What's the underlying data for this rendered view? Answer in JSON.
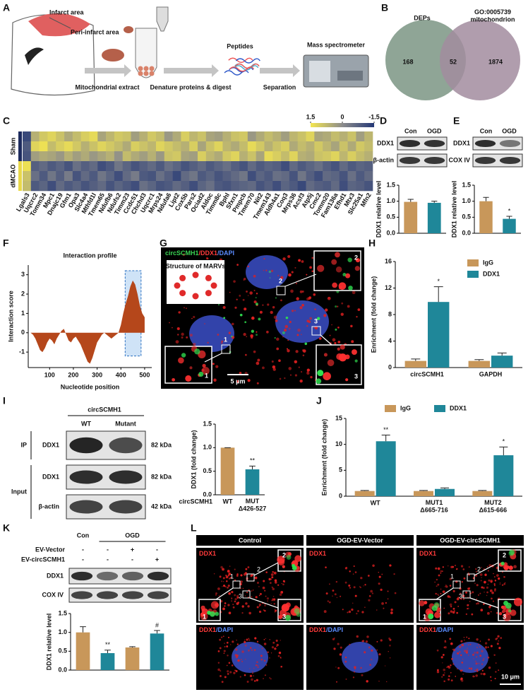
{
  "figure": {
    "panel_labels": [
      "A",
      "B",
      "C",
      "D",
      "E",
      "F",
      "G",
      "H",
      "I",
      "J",
      "K",
      "L"
    ]
  },
  "panel_a": {
    "labels": [
      "Infarct area",
      "Peri-infarct area",
      "Mitochondrial extract",
      "Denature proteins & digest",
      "Peptides",
      "Separation",
      "Mass spectrometer"
    ]
  },
  "panel_b": {
    "sets": [
      "DEPs",
      "GO:0005739\nmitochondrion"
    ],
    "counts": [
      168,
      52,
      1874
    ],
    "colors": [
      "#8fa596",
      "#a28c9f"
    ]
  },
  "panel_d_blot": {
    "rows": [
      "DDX1",
      "β-actin"
    ]
  },
  "panel_e_blot": {
    "rows": [
      "DDX1",
      "COX IV"
    ]
  },
  "panel_g": {
    "channels": [
      {
        "text": "circSCMH1",
        "color": "#39d353"
      },
      {
        "text": "/DDX1",
        "color": "#ff3b3b"
      },
      {
        "text": "/DAPI",
        "color": "#5a8cff"
      }
    ],
    "inset_title": "Structure of MARVs",
    "scale": "5 μm",
    "zoom_labels": [
      "1",
      "2",
      "3"
    ]
  },
  "panel_i_blot": {
    "header": "circSCMH1",
    "columns": [
      "WT",
      "Mutant"
    ],
    "groups": [
      "IP",
      "Input"
    ],
    "rows": [
      "DDX1",
      "DDX1",
      "β-actin"
    ],
    "sizes": [
      "82 kDa",
      "82 kDa",
      "42 kDa"
    ]
  },
  "panel_k_table": {
    "columns": [
      "Con",
      "OGD"
    ],
    "treatments": [
      {
        "name": "EV-Vector",
        "marks": [
          "-",
          "-",
          "+",
          "-"
        ]
      },
      {
        "name": "EV-circSCMH1",
        "marks": [
          "-",
          "-",
          "-",
          "+"
        ]
      }
    ],
    "rows": [
      "DDX1",
      "COX IV"
    ]
  },
  "panel_l": {
    "columns": [
      "Control",
      "OGD-EV-Vector",
      "OGD-EV-circSCMH1"
    ],
    "top_label": [
      {
        "text": "DDX1",
        "color": "#ff3b3b"
      }
    ],
    "bottom_label": [
      {
        "text": "DDX1",
        "color": "#ff3b3b"
      },
      {
        "text": "/DAPI",
        "color": "#5a8cff"
      }
    ],
    "scale": "10 μm",
    "zoom_labels": [
      "1",
      "2",
      "3"
    ]
  },
  "chart_data": [
    {
      "type": "heatmap",
      "x": [
        "Lgals3",
        "Uqcrc2",
        "Tomm34",
        "Mpc1",
        "Dnajc19",
        "Gfm1",
        "Opa3",
        "Slc4a4",
        "Mthfd1l",
        "Tmem65",
        "Ndufb6",
        "Ndufs2",
        "Timm23",
        "Ccdc51",
        "Chchd3",
        "Uqcrc1",
        "Mrps24",
        "Ndufa6",
        "Lipt2",
        "Cox5b",
        "Pars2",
        "Ociad2",
        "Aldoc",
        "Timm8c",
        "Bphl",
        "Sfxn1",
        "Pmpcb",
        "Tmem70",
        "Nit2",
        "Tmem143",
        "Aldh4a1",
        "Coq3",
        "Mrps36",
        "Acsf3",
        "Atp5j",
        "Cmc2",
        "Tomm20",
        "Fam136a",
        "Efhd1",
        "Mtx3",
        "Slc25a1",
        "Mfn2"
      ],
      "groups": [
        {
          "name": "Sham",
          "color": "#1d2b5e",
          "values": [
            [
              -1.2,
              0.6,
              1.0,
              1.2,
              0.9,
              0.5,
              0.8,
              1.1,
              1.3,
              0.4,
              0.7,
              1.0,
              0.9,
              0.3,
              0.6,
              1.0,
              0.8,
              0.2,
              0.5,
              1.1,
              0.7,
              0.9,
              0.4,
              0.3,
              0.6,
              0.9,
              1.0,
              0.2,
              0.5,
              0.8,
              0.6,
              0.3,
              0.7,
              0.9,
              1.2,
              0.4,
              0.5,
              0.8,
              0.6,
              0.9,
              0.3,
              0.7
            ],
            [
              -0.9,
              1.2,
              1.4,
              0.8,
              1.1,
              1.3,
              1.0,
              0.6,
              0.9,
              1.2,
              1.0,
              0.8,
              0.5,
              1.1,
              0.9,
              0.7,
              1.2,
              1.0,
              0.8,
              0.6,
              1.1,
              0.4,
              0.9,
              1.2,
              0.7,
              0.5,
              0.8,
              1.3,
              1.0,
              0.6,
              0.9,
              1.1,
              0.5,
              0.8,
              0.6,
              1.0,
              0.7,
              0.4,
              0.9,
              0.5,
              1.0,
              0.8
            ],
            [
              -1.0,
              0.3,
              0.5,
              0.4,
              0.2,
              0.6,
              0.3,
              0.5,
              0.2,
              0.4,
              0.6,
              0.1,
              0.8,
              0.5,
              0.3,
              0.6,
              0.2,
              0.9,
              1.0,
              0.4,
              0.3,
              1.1,
              0.7,
              0.5,
              1.0,
              1.2,
              0.6,
              0.9,
              0.4,
              1.3,
              1.1,
              0.8,
              1.2,
              0.6,
              0.5,
              0.9,
              1.0,
              1.2,
              0.7,
              1.1,
              0.8,
              0.6
            ]
          ]
        },
        {
          "name": "dMCAO",
          "color": "#e8d84a",
          "values": [
            [
              1.4,
              -0.8,
              -0.6,
              -0.9,
              -0.7,
              -1.0,
              -0.5,
              -0.8,
              -0.6,
              -1.1,
              -0.9,
              -0.4,
              -0.7,
              -1.0,
              -0.8,
              -0.6,
              -0.9,
              -0.5,
              -0.7,
              -1.0,
              -0.8,
              -0.6,
              -0.9,
              -0.7,
              -0.5,
              -0.8,
              -1.0,
              -0.6,
              -0.9,
              -0.7,
              -0.8,
              -1.1,
              -0.6,
              -0.9,
              -0.7,
              -0.5,
              -0.8,
              -1.0,
              -0.6,
              -0.9,
              -0.7,
              -0.8
            ],
            [
              0.9,
              -0.5,
              -0.9,
              -0.4,
              -0.8,
              -0.3,
              -1.0,
              -0.6,
              -0.9,
              -0.4,
              -0.7,
              -1.1,
              -0.6,
              -0.3,
              -0.9,
              -1.0,
              -0.5,
              -0.8,
              -1.2,
              -0.6,
              -0.4,
              -0.9,
              -0.7,
              -1.0,
              -0.8,
              -0.6,
              -0.4,
              -1.1,
              -0.7,
              -0.9,
              -0.5,
              -0.6,
              -1.0,
              -0.4,
              -0.8,
              -1.1,
              -0.6,
              -0.7,
              -1.0,
              -0.5,
              -0.9,
              -0.6
            ],
            [
              0.8,
              -0.9,
              -0.7,
              -1.1,
              -0.6,
              -0.9,
              -0.7,
              -1.0,
              -0.8,
              -0.6,
              -1.0,
              -0.7,
              -0.9,
              -1.1,
              -0.5,
              -0.7,
              -1.0,
              -0.9,
              -0.6,
              -0.8,
              -1.1,
              -0.7,
              -0.5,
              -0.9,
              -1.0,
              -0.8,
              -0.7,
              -0.6,
              -1.0,
              -0.8,
              -1.1,
              -0.7,
              -0.9,
              -1.2,
              -0.6,
              -0.8,
              -0.9,
              -0.6,
              -1.1,
              -0.7,
              -0.8,
              -1.0
            ]
          ]
        }
      ],
      "zlim": [
        -1.5,
        1.5
      ],
      "colorbar_ticks": [
        1.5,
        0,
        -1.5
      ],
      "color_high": "#f4e650",
      "color_mid": "#8c8c8c",
      "color_low": "#243876"
    },
    {
      "type": "bar",
      "categories": [
        "Con",
        "OGD"
      ],
      "values": [
        0.98,
        0.95
      ],
      "errors": [
        0.08,
        0.05
      ],
      "colors": [
        "#c8975a",
        "#1f8799"
      ],
      "y_label": "DDX1 relative level",
      "ylim": [
        0,
        1.5
      ],
      "yticks": [
        {
          "value": 0,
          "label": "0.0"
        },
        {
          "value": 0.5,
          "label": "0.5"
        },
        {
          "value": 1,
          "label": "1.0"
        },
        {
          "value": 1.5,
          "label": "1.5"
        }
      ]
    },
    {
      "type": "bar",
      "categories": [
        "Con",
        "OGD"
      ],
      "values": [
        1.0,
        0.45
      ],
      "errors": [
        0.12,
        0.08
      ],
      "significance": [
        null,
        "*"
      ],
      "colors": [
        "#c8975a",
        "#1f8799"
      ],
      "y_label": "DDX1 relative level",
      "ylim": [
        0,
        1.5
      ],
      "yticks": [
        {
          "value": 0,
          "label": "0.0"
        },
        {
          "value": 0.5,
          "label": "0.5"
        },
        {
          "value": 1,
          "label": "1.0"
        },
        {
          "value": 1.5,
          "label": "1.5"
        }
      ]
    },
    {
      "type": "area",
      "title": "Interaction profile",
      "x_label": "Nucleotide position",
      "y_label": "Interaction score",
      "color": "#b5471b",
      "x": [
        20,
        30,
        40,
        50,
        60,
        70,
        80,
        90,
        100,
        110,
        120,
        130,
        140,
        150,
        160,
        170,
        180,
        190,
        200,
        210,
        220,
        230,
        240,
        250,
        260,
        270,
        280,
        290,
        300,
        310,
        320,
        330,
        340,
        350,
        360,
        370,
        380,
        390,
        400,
        410,
        420,
        430,
        440,
        450,
        460,
        470,
        480,
        490,
        500
      ],
      "values": [
        0,
        -0.1,
        -0.3,
        -0.6,
        -0.9,
        -1.0,
        -0.8,
        -0.5,
        -0.3,
        -0.4,
        -0.6,
        -0.3,
        -0.1,
        0.1,
        0.2,
        -0.1,
        -0.4,
        -0.5,
        -0.3,
        -0.2,
        -0.4,
        -0.6,
        -0.9,
        -1.2,
        -1.5,
        -1.6,
        -1.3,
        -0.9,
        -0.5,
        -0.3,
        -0.1,
        0,
        -0.1,
        -0.2,
        -0.3,
        -0.2,
        -0.1,
        0,
        0.4,
        1.0,
        1.5,
        1.9,
        2.4,
        2.7,
        2.5,
        2.0,
        1.4,
        1.0,
        0.8
      ],
      "highlight": [
        418,
        485
      ],
      "xlim": [
        10,
        530
      ],
      "xticks": [
        100,
        200,
        300,
        400,
        500
      ],
      "ylim": [
        -1.8,
        3.5
      ],
      "yticks": [
        -1,
        0,
        1,
        2,
        3
      ]
    },
    {
      "type": "bar",
      "categories": [
        "circSCMH1",
        "GAPDH"
      ],
      "series": [
        {
          "name": "IgG",
          "color": "#c8975a",
          "values": [
            1.0,
            1.0
          ],
          "errors": [
            0.3,
            0.2
          ]
        },
        {
          "name": "DDX1",
          "color": "#1f8799",
          "values": [
            9.9,
            1.8
          ],
          "errors": [
            2.3,
            0.4
          ],
          "significance": [
            "*",
            null
          ]
        }
      ],
      "legend": "top-right",
      "y_label": "Enrichment (fold change)",
      "ylim": [
        0,
        16
      ],
      "yticks": [
        0,
        4,
        8,
        12,
        16
      ]
    },
    {
      "type": "bar",
      "categories": [
        "WT",
        "MUT\nΔ426-527"
      ],
      "category_title": "circSCMH1",
      "values": [
        1.0,
        0.54
      ],
      "errors": [
        0,
        0.07
      ],
      "significance": [
        null,
        "**"
      ],
      "colors": [
        "#c8975a",
        "#1f8799"
      ],
      "y_label": "DDX1 (fold change)",
      "ylim": [
        0,
        1.5
      ],
      "yticks": [
        {
          "value": 0,
          "label": "0.0"
        },
        {
          "value": 0.5,
          "label": "0.5"
        },
        {
          "value": 1,
          "label": "1.0"
        },
        {
          "value": 1.5,
          "label": "1.5"
        }
      ]
    },
    {
      "type": "bar",
      "categories": [
        "WT",
        "MUT1\nΔ665-716",
        "MUT2\nΔ615-666"
      ],
      "series": [
        {
          "name": "IgG",
          "color": "#c8975a",
          "values": [
            1.0,
            1.0,
            1.0
          ],
          "errors": [
            0.1,
            0.1,
            0.1
          ]
        },
        {
          "name": "DDX1",
          "color": "#1f8799",
          "values": [
            10.6,
            1.4,
            7.9
          ],
          "errors": [
            1.2,
            0.2,
            1.6
          ],
          "significance": [
            "**",
            null,
            "*"
          ]
        }
      ],
      "legend": "top",
      "y_label": "Enrichment (fold change)",
      "ylim": [
        0,
        15
      ],
      "yticks": [
        0,
        5,
        10,
        15
      ]
    },
    {
      "type": "bar",
      "categories": [
        null,
        null,
        null,
        null
      ],
      "values": [
        1.0,
        0.45,
        0.6,
        0.97
      ],
      "errors": [
        0.15,
        0.08,
        0.02,
        0.08
      ],
      "significance": [
        null,
        "**",
        null,
        "#"
      ],
      "colors": [
        "#c8975a",
        "#1f8799",
        "#c8975a",
        "#1f8799"
      ],
      "y_label": "DDX1 relative level",
      "ylim": [
        0,
        1.5
      ],
      "yticks": [
        {
          "value": 0,
          "label": "0.0"
        },
        {
          "value": 0.5,
          "label": "0.5"
        },
        {
          "value": 1,
          "label": "1.0"
        },
        {
          "value": 1.5,
          "label": "1.5"
        }
      ]
    }
  ]
}
